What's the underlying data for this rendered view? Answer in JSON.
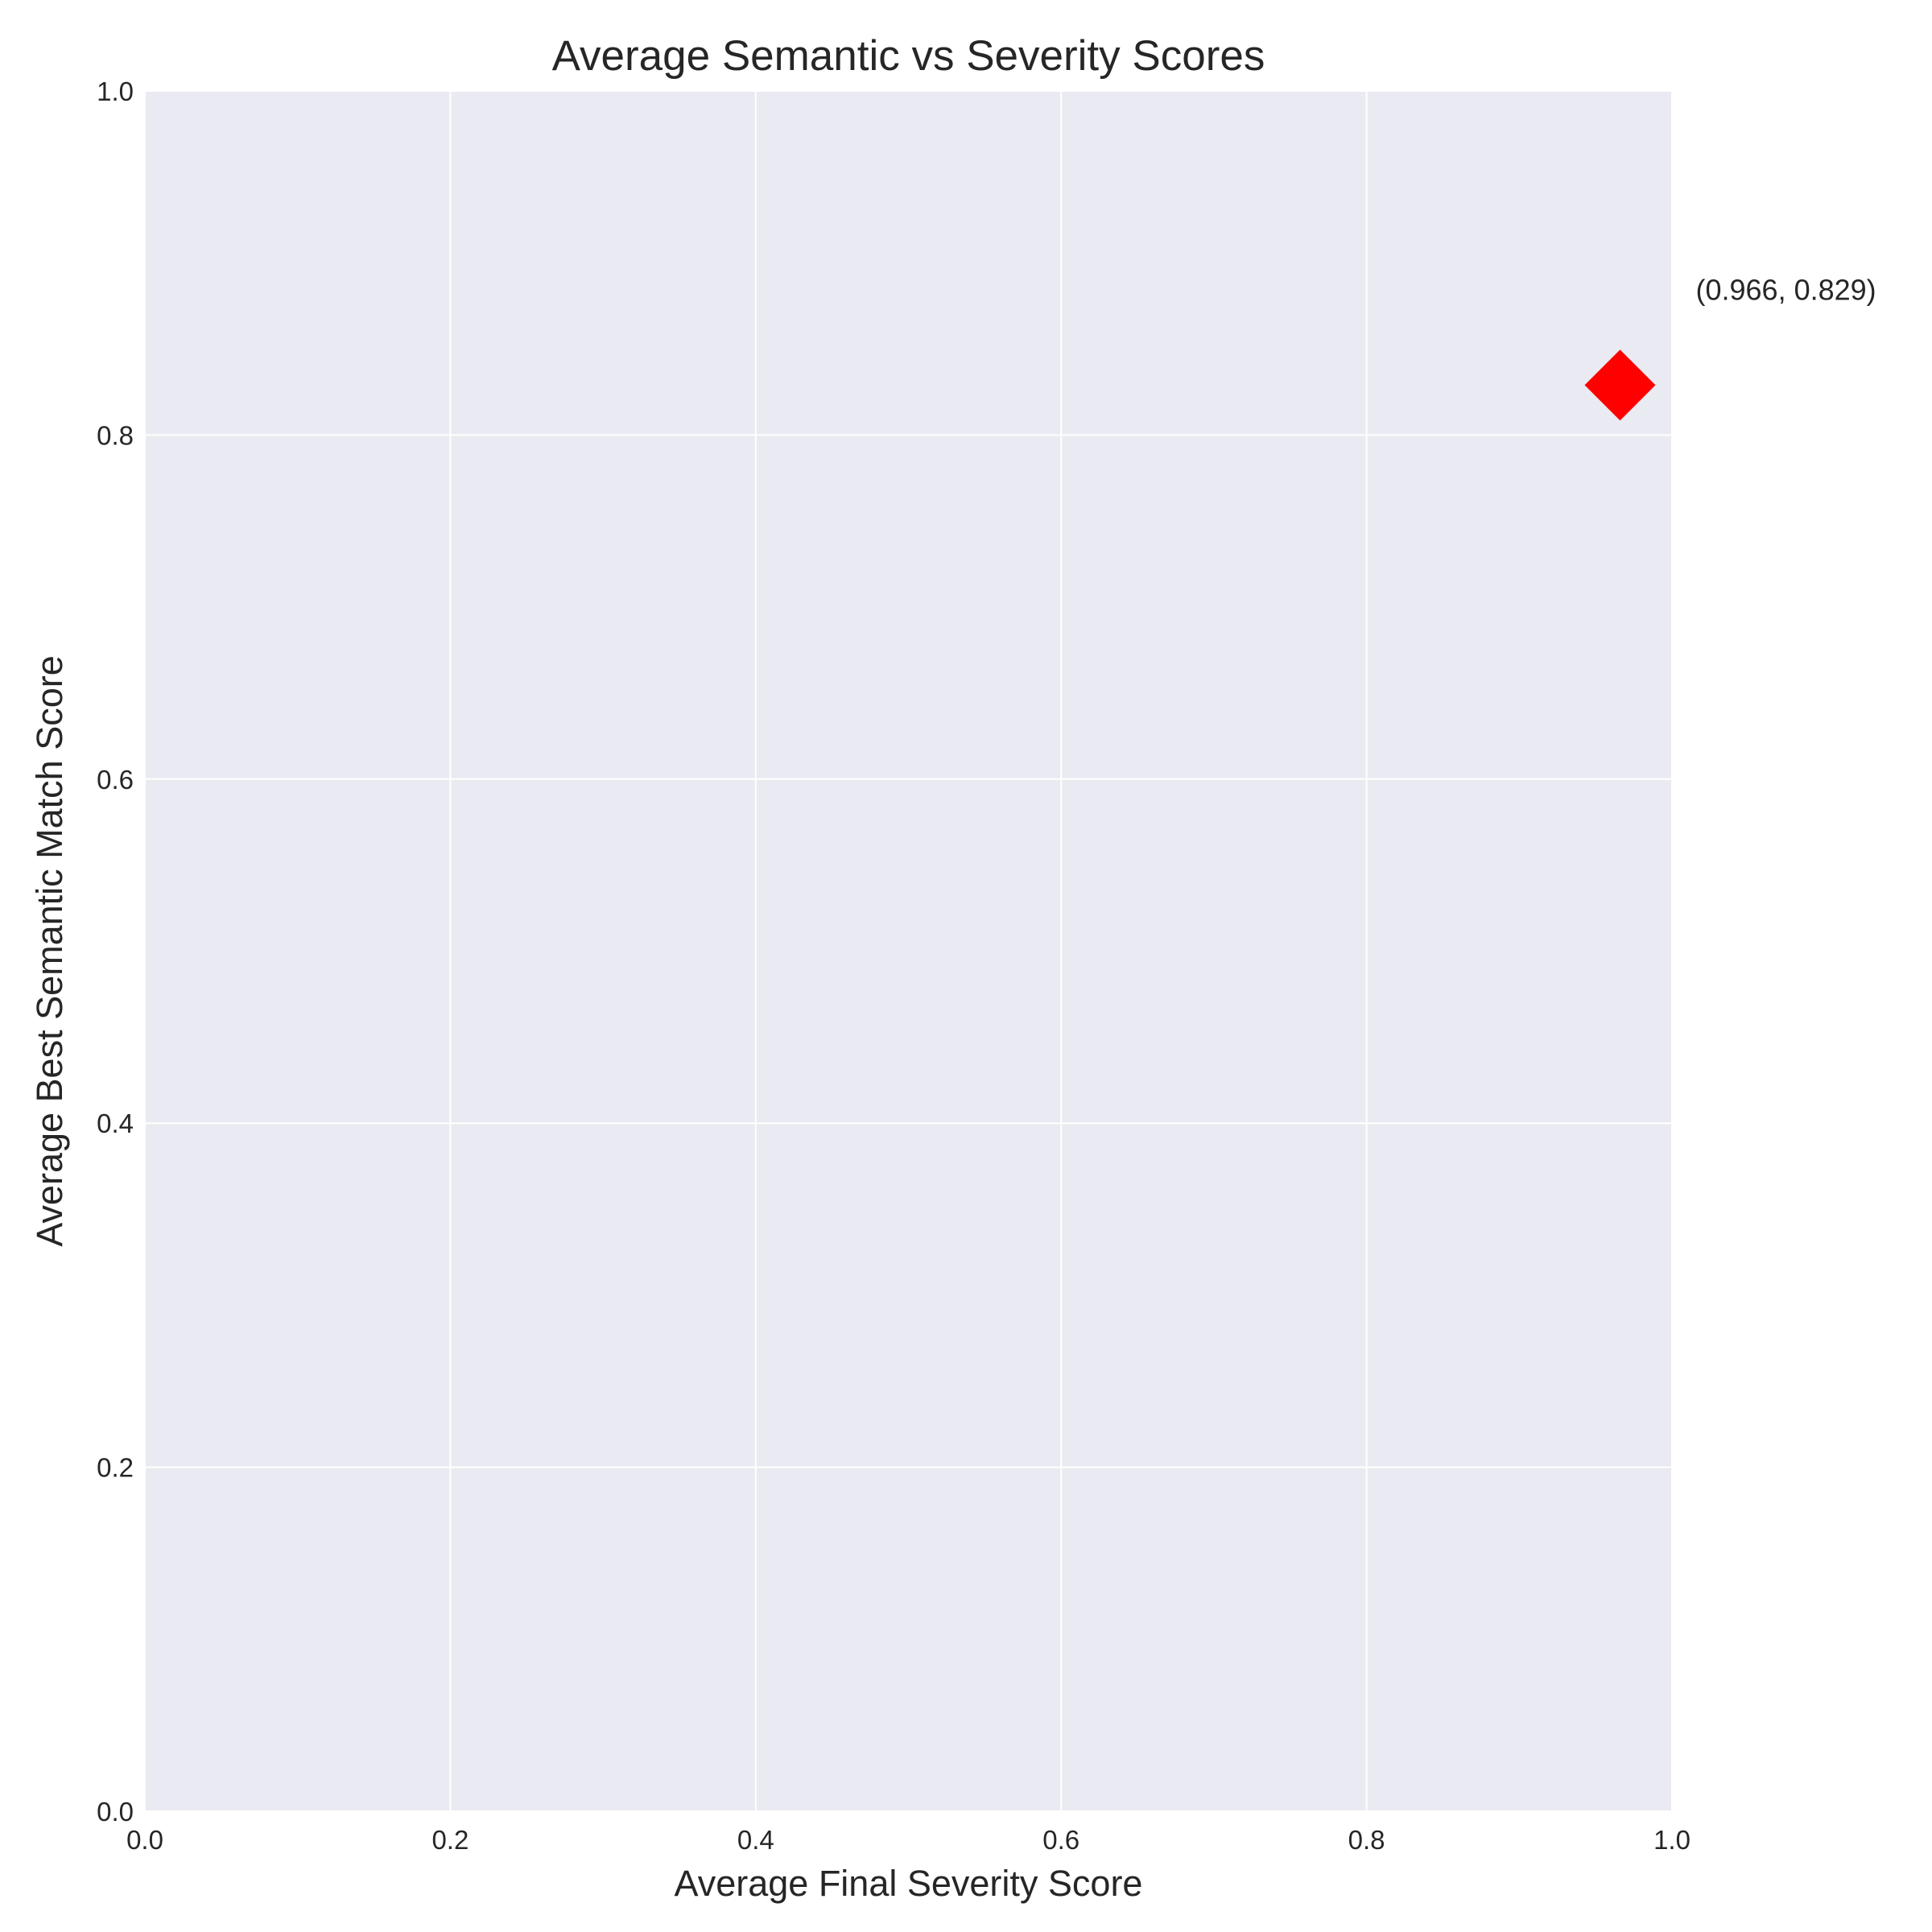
{
  "chart_data": {
    "type": "scatter",
    "title": "Average Semantic vs Severity Scores",
    "xlabel": "Average Final Severity Score",
    "ylabel": "Average Best Semantic Match Score",
    "xlim": [
      0.0,
      1.0
    ],
    "ylim": [
      0.0,
      1.0
    ],
    "xticks": [
      0.0,
      0.2,
      0.4,
      0.6,
      0.8,
      1.0
    ],
    "yticks": [
      0.0,
      0.2,
      0.4,
      0.6,
      0.8,
      1.0
    ],
    "xtick_labels": [
      "0.0",
      "0.2",
      "0.4",
      "0.6",
      "0.8",
      "1.0"
    ],
    "ytick_labels": [
      "0.0",
      "0.2",
      "0.4",
      "0.6",
      "0.8",
      "1.0"
    ],
    "grid": true,
    "plot_background": "#eaeaf2",
    "grid_color": "#ffffff",
    "points": [
      {
        "x": 0.966,
        "y": 0.829,
        "marker": "diamond",
        "color": "#ff0000",
        "label": "(0.966, 0.829)"
      }
    ]
  }
}
